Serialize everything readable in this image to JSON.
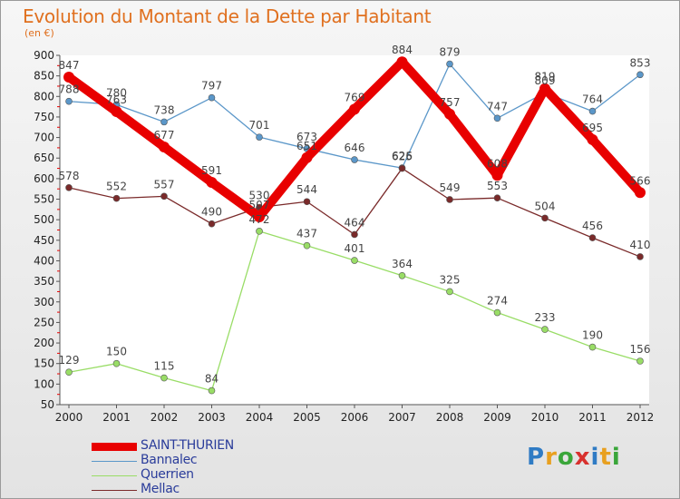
{
  "header": {
    "title": "Evolution du Montant de la Dette par Habitant",
    "unit": "(en €)"
  },
  "brand": {
    "letters": [
      "P",
      "r",
      "o",
      "x",
      "i",
      "t",
      "i"
    ],
    "colors": [
      "#2f7bc4",
      "#e8a020",
      "#3aa63a",
      "#d8312e",
      "#2f7bc4",
      "#e8a020",
      "#3aa63a"
    ]
  },
  "chart_data": {
    "type": "line",
    "title": "Evolution du Montant de la Dette par Habitant",
    "ylabel": "(en €)",
    "xlabel": "",
    "x": [
      "2000",
      "2001",
      "2002",
      "2003",
      "2004",
      "2005",
      "2006",
      "2007",
      "2008",
      "2009",
      "2010",
      "2011",
      "2012"
    ],
    "ylim": [
      50,
      900
    ],
    "yticks": [
      50,
      100,
      150,
      200,
      250,
      300,
      350,
      400,
      450,
      500,
      550,
      600,
      650,
      700,
      750,
      800,
      850,
      900
    ],
    "grid": false,
    "legend_position": "bottom-left",
    "series": [
      {
        "name": "SAINT-THURIEN",
        "color": "#e80000",
        "values": [
          847,
          763,
          677,
          591,
          507,
          651,
          769,
          884,
          757,
          608,
          819,
          695,
          566
        ]
      },
      {
        "name": "Bannalec",
        "color": "#5b97c9",
        "values": [
          788,
          780,
          738,
          797,
          701,
          673,
          646,
          626,
          879,
          747,
          809,
          764,
          853
        ]
      },
      {
        "name": "Querrien",
        "color": "#99dd66",
        "values": [
          129,
          150,
          115,
          84,
          472,
          437,
          401,
          364,
          325,
          274,
          233,
          190,
          156
        ]
      },
      {
        "name": "Mellac",
        "color": "#7a2a2a",
        "values": [
          578,
          552,
          557,
          490,
          530,
          544,
          464,
          625,
          549,
          553,
          504,
          456,
          410
        ]
      }
    ]
  }
}
